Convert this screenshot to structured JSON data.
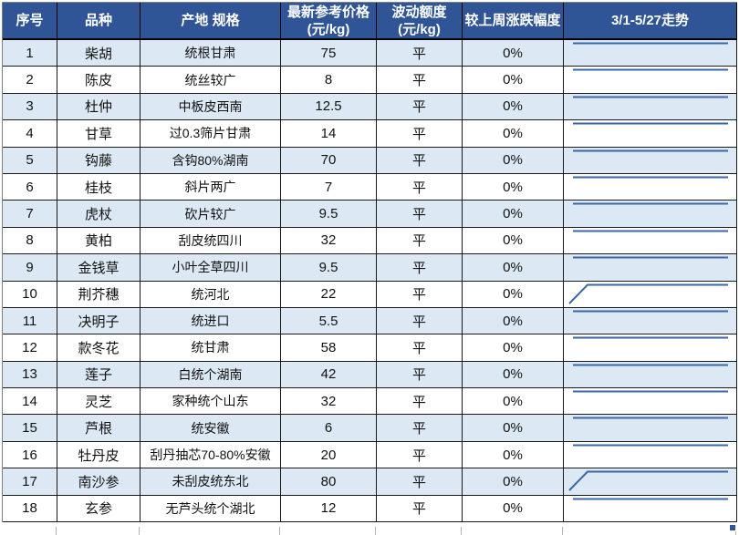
{
  "table": {
    "trend_header": "3/1-5/27走势",
    "columns": [
      {
        "label": "序号"
      },
      {
        "label": "品种"
      },
      {
        "label": "产地 规格"
      },
      {
        "label": "最新参考价格",
        "sub": "(元/kg)"
      },
      {
        "label": "波动额度",
        "sub": "(元/kg)"
      },
      {
        "label": "较上周涨跌幅度"
      },
      {
        "label": "3/1-5/27走势"
      }
    ],
    "rows": [
      {
        "no": "1",
        "name": "柴胡",
        "spec": "统根甘肃",
        "price": "75",
        "fluctuation": "平",
        "change": "0%",
        "trend": "flat"
      },
      {
        "no": "2",
        "name": "陈皮",
        "spec": "统丝较广",
        "price": "8",
        "fluctuation": "平",
        "change": "0%",
        "trend": "flat"
      },
      {
        "no": "3",
        "name": "杜仲",
        "spec": "中板皮西南",
        "price": "12.5",
        "fluctuation": "平",
        "change": "0%",
        "trend": "flat"
      },
      {
        "no": "4",
        "name": "甘草",
        "spec": "过0.3筛片甘肃",
        "price": "14",
        "fluctuation": "平",
        "change": "0%",
        "trend": "flat"
      },
      {
        "no": "5",
        "name": "钩藤",
        "spec": "含钩80%湖南",
        "price": "70",
        "fluctuation": "平",
        "change": "0%",
        "trend": "flat"
      },
      {
        "no": "6",
        "name": "桂枝",
        "spec": "斜片两广",
        "price": "7",
        "fluctuation": "平",
        "change": "0%",
        "trend": "flat"
      },
      {
        "no": "7",
        "name": "虎杖",
        "spec": "砍片较广",
        "price": "9.5",
        "fluctuation": "平",
        "change": "0%",
        "trend": "flat"
      },
      {
        "no": "8",
        "name": "黄柏",
        "spec": "刮皮统四川",
        "price": "32",
        "fluctuation": "平",
        "change": "0%",
        "trend": "flat"
      },
      {
        "no": "9",
        "name": "金钱草",
        "spec": "小叶全草四川",
        "price": "9.5",
        "fluctuation": "平",
        "change": "0%",
        "trend": "flat"
      },
      {
        "no": "10",
        "name": "荆芥穗",
        "spec": "统河北",
        "price": "22",
        "fluctuation": "平",
        "change": "0%",
        "trend": "rise"
      },
      {
        "no": "11",
        "name": "决明子",
        "spec": "统进口",
        "price": "5.5",
        "fluctuation": "平",
        "change": "0%",
        "trend": "flat"
      },
      {
        "no": "12",
        "name": "款冬花",
        "spec": "统甘肃",
        "price": "58",
        "fluctuation": "平",
        "change": "0%",
        "trend": "flat"
      },
      {
        "no": "13",
        "name": "莲子",
        "spec": "白统个湖南",
        "price": "42",
        "fluctuation": "平",
        "change": "0%",
        "trend": "flat"
      },
      {
        "no": "14",
        "name": "灵芝",
        "spec": "家种统个山东",
        "price": "32",
        "fluctuation": "平",
        "change": "0%",
        "trend": "flat"
      },
      {
        "no": "15",
        "name": "芦根",
        "spec": "统安徽",
        "price": "6",
        "fluctuation": "平",
        "change": "0%",
        "trend": "flat"
      },
      {
        "no": "16",
        "name": "牡丹皮",
        "spec": "刮丹抽芯70-80%安徽",
        "price": "20",
        "fluctuation": "平",
        "change": "0%",
        "trend": "flat"
      },
      {
        "no": "17",
        "name": "南沙参",
        "spec": "未刮皮统东北",
        "price": "80",
        "fluctuation": "平",
        "change": "0%",
        "trend": "rise"
      },
      {
        "no": "18",
        "name": "玄参",
        "spec": "无芦头统个湖北",
        "price": "12",
        "fluctuation": "平",
        "change": "0%",
        "trend": "flat"
      }
    ]
  },
  "chart_data": {
    "type": "line",
    "title": "3/1-5/27走势 sparklines",
    "note": "flat = unchanged price over period; rise = step up near start then flat",
    "series_trends": [
      "flat",
      "flat",
      "flat",
      "flat",
      "flat",
      "flat",
      "flat",
      "flat",
      "flat",
      "rise",
      "flat",
      "flat",
      "flat",
      "flat",
      "flat",
      "flat",
      "rise",
      "flat"
    ]
  },
  "icons": {
    "fill_handle": "selection-fill-handle"
  },
  "colors": {
    "header_bg": "#2F5597",
    "header_text": "#FFFFFF",
    "alt_row_bg": "#DCE9F5",
    "row_bg": "#FFFFFF",
    "sparkline": "#3A66A5",
    "fill_handle": "#2F5597"
  }
}
